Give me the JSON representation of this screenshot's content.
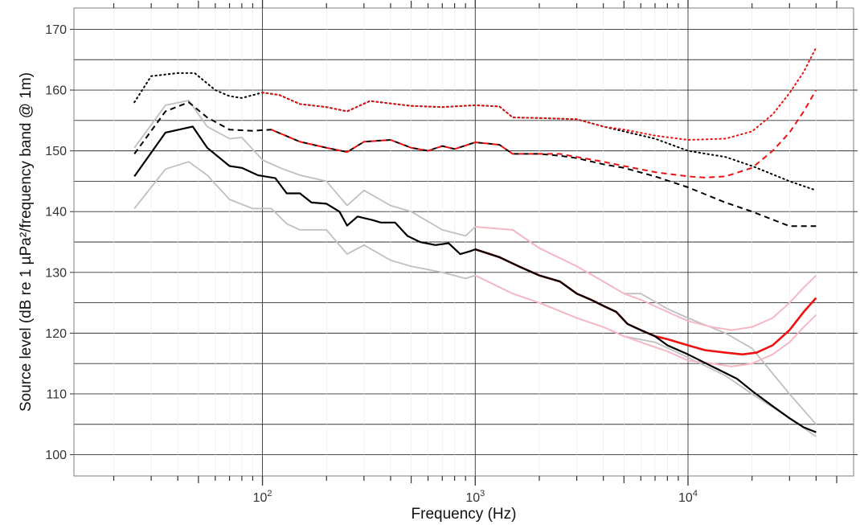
{
  "chart_data": {
    "type": "line",
    "title": "",
    "xlabel": "Frequency (Hz)",
    "ylabel": "Source level (dB re 1 µPa²/frequency band @ 1m)",
    "x_scale": "log",
    "xlim": [
      13,
      60000
    ],
    "ylim": [
      96.5,
      173.5
    ],
    "y_ticks": [
      100,
      110,
      120,
      130,
      140,
      150,
      160,
      170
    ],
    "y_minor_ticks": [
      105,
      115,
      125,
      135,
      145,
      155,
      165
    ],
    "x_ticks": [
      {
        "value": 100,
        "base": "10",
        "exp": "2"
      },
      {
        "value": 1000,
        "base": "10",
        "exp": "3"
      },
      {
        "value": 10000,
        "base": "10",
        "exp": "4"
      }
    ],
    "grid": true,
    "legend": "none",
    "series": [
      {
        "color": "#c0c0c0",
        "style": "solid",
        "width": 1.8,
        "points": [
          [
            25,
            150.5
          ],
          [
            35,
            157.5
          ],
          [
            45,
            158.3
          ],
          [
            55,
            154
          ],
          [
            70,
            152
          ],
          [
            80,
            152.2
          ],
          [
            100,
            148.5
          ],
          [
            125,
            147
          ],
          [
            150,
            146
          ],
          [
            200,
            145
          ],
          [
            250,
            141
          ],
          [
            300,
            143.5
          ],
          [
            400,
            141
          ],
          [
            500,
            140
          ],
          [
            700,
            137
          ],
          [
            900,
            136
          ],
          [
            1000,
            137.5
          ],
          [
            1500,
            137
          ],
          [
            2000,
            134
          ],
          [
            3000,
            131
          ],
          [
            4000,
            128.5
          ],
          [
            5000,
            126.5
          ],
          [
            6000,
            126.5
          ],
          [
            8000,
            124
          ],
          [
            10000,
            122.5
          ],
          [
            15000,
            120
          ],
          [
            20000,
            117.5
          ],
          [
            30000,
            110
          ],
          [
            40000,
            105
          ]
        ]
      },
      {
        "color": "#c0c0c0",
        "style": "solid",
        "width": 1.8,
        "points": [
          [
            25,
            140.5
          ],
          [
            35,
            147
          ],
          [
            45,
            148.2
          ],
          [
            55,
            146
          ],
          [
            70,
            142
          ],
          [
            90,
            140.5
          ],
          [
            110,
            140.5
          ],
          [
            130,
            138
          ],
          [
            150,
            137
          ],
          [
            200,
            137
          ],
          [
            250,
            133
          ],
          [
            300,
            134.5
          ],
          [
            400,
            132
          ],
          [
            500,
            131
          ],
          [
            700,
            130
          ],
          [
            900,
            129
          ],
          [
            1000,
            129.5
          ],
          [
            1500,
            126.5
          ],
          [
            2000,
            125
          ],
          [
            3000,
            122.5
          ],
          [
            4000,
            121
          ],
          [
            5000,
            119.5
          ],
          [
            7000,
            118.5
          ],
          [
            10000,
            116
          ],
          [
            15000,
            113
          ],
          [
            20000,
            110
          ],
          [
            30000,
            106
          ],
          [
            40000,
            103
          ]
        ]
      },
      {
        "color": "#f5b8c4",
        "style": "solid",
        "width": 2.0,
        "points": [
          [
            1000,
            137.5
          ],
          [
            1500,
            137
          ],
          [
            2000,
            134
          ],
          [
            3000,
            131
          ],
          [
            4000,
            128.5
          ],
          [
            5000,
            126.5
          ],
          [
            6000,
            125.5
          ],
          [
            8000,
            123.5
          ],
          [
            10000,
            122
          ],
          [
            13000,
            121
          ],
          [
            16000,
            120.5
          ],
          [
            20000,
            121
          ],
          [
            25000,
            122.5
          ],
          [
            30000,
            125
          ],
          [
            35000,
            127.5
          ],
          [
            40000,
            129.5
          ]
        ]
      },
      {
        "color": "#f5b8c4",
        "style": "solid",
        "width": 2.0,
        "points": [
          [
            1000,
            129.5
          ],
          [
            1500,
            126.5
          ],
          [
            2000,
            125
          ],
          [
            3000,
            122.5
          ],
          [
            4000,
            121
          ],
          [
            5000,
            119.5
          ],
          [
            6000,
            118.5
          ],
          [
            8000,
            117
          ],
          [
            10000,
            115.5
          ],
          [
            13000,
            115
          ],
          [
            16000,
            114.5
          ],
          [
            20000,
            115
          ],
          [
            25000,
            116.5
          ],
          [
            30000,
            118.5
          ],
          [
            35000,
            121
          ],
          [
            40000,
            123
          ]
        ]
      },
      {
        "color": "#ee1111",
        "style": "solid",
        "width": 2.6,
        "points": [
          [
            1000,
            133.8
          ],
          [
            1300,
            132.5
          ],
          [
            1600,
            131
          ],
          [
            2000,
            129.5
          ],
          [
            2500,
            128.5
          ],
          [
            3000,
            126.5
          ],
          [
            3500,
            125.5
          ],
          [
            4000,
            124.5
          ],
          [
            4600,
            123.5
          ],
          [
            5200,
            121.5
          ],
          [
            6000,
            120.5
          ],
          [
            7000,
            119.5
          ],
          [
            8000,
            119
          ],
          [
            10000,
            118
          ],
          [
            12000,
            117.2
          ],
          [
            15000,
            116.8
          ],
          [
            18000,
            116.5
          ],
          [
            21000,
            116.8
          ],
          [
            25000,
            118
          ],
          [
            30000,
            120.5
          ],
          [
            35000,
            123.5
          ],
          [
            40000,
            125.8
          ]
        ]
      },
      {
        "color": "#000000",
        "style": "solid",
        "width": 2.2,
        "points": [
          [
            25,
            145.8
          ],
          [
            35,
            153
          ],
          [
            47,
            154
          ],
          [
            55,
            150.5
          ],
          [
            70,
            147.5
          ],
          [
            80,
            147.2
          ],
          [
            95,
            146
          ],
          [
            115,
            145.5
          ],
          [
            130,
            143
          ],
          [
            150,
            143
          ],
          [
            170,
            141.5
          ],
          [
            200,
            141.3
          ],
          [
            230,
            140
          ],
          [
            250,
            137.7
          ],
          [
            280,
            139.2
          ],
          [
            330,
            138.6
          ],
          [
            360,
            138.2
          ],
          [
            420,
            138.2
          ],
          [
            480,
            136
          ],
          [
            550,
            135
          ],
          [
            650,
            134.5
          ],
          [
            750,
            134.8
          ],
          [
            850,
            133
          ],
          [
            950,
            133.5
          ],
          [
            1000,
            133.8
          ],
          [
            1300,
            132.5
          ],
          [
            1600,
            131
          ],
          [
            2000,
            129.5
          ],
          [
            2500,
            128.5
          ],
          [
            3000,
            126.5
          ],
          [
            3500,
            125.5
          ],
          [
            4000,
            124.5
          ],
          [
            4600,
            123.5
          ],
          [
            5200,
            121.5
          ],
          [
            6000,
            120.5
          ],
          [
            7000,
            119.5
          ],
          [
            8000,
            118
          ],
          [
            10000,
            116.5
          ],
          [
            13000,
            114.5
          ],
          [
            17000,
            112.5
          ],
          [
            20000,
            110.5
          ],
          [
            25000,
            108
          ],
          [
            30000,
            106
          ],
          [
            35000,
            104.5
          ],
          [
            40000,
            103.7
          ]
        ]
      },
      {
        "color": "#000000",
        "style": "dashed",
        "width": 2.0,
        "points": [
          [
            25,
            149.5
          ],
          [
            35,
            156.5
          ],
          [
            45,
            158
          ],
          [
            55,
            155.5
          ],
          [
            70,
            153.5
          ],
          [
            90,
            153.3
          ],
          [
            110,
            153.5
          ],
          [
            150,
            151.5
          ],
          [
            200,
            150.5
          ],
          [
            250,
            149.8
          ],
          [
            300,
            151.5
          ],
          [
            400,
            151.8
          ],
          [
            500,
            150.5
          ],
          [
            600,
            150
          ],
          [
            700,
            150.8
          ],
          [
            800,
            150.3
          ],
          [
            1000,
            151.4
          ],
          [
            1300,
            151
          ],
          [
            1500,
            149.5
          ],
          [
            2000,
            149.5
          ],
          [
            2500,
            149.2
          ],
          [
            3000,
            148.8
          ],
          [
            4000,
            147.8
          ],
          [
            5000,
            147.2
          ],
          [
            7000,
            145.8
          ],
          [
            10000,
            144
          ],
          [
            15000,
            141.5
          ],
          [
            20000,
            140
          ],
          [
            30000,
            137.6
          ],
          [
            40000,
            137.6
          ]
        ]
      },
      {
        "color": "#ee1111",
        "style": "dashed",
        "width": 2.0,
        "points": [
          [
            110,
            153.5
          ],
          [
            150,
            151.5
          ],
          [
            200,
            150.5
          ],
          [
            250,
            149.8
          ],
          [
            300,
            151.5
          ],
          [
            400,
            151.8
          ],
          [
            500,
            150.5
          ],
          [
            600,
            150
          ],
          [
            700,
            150.8
          ],
          [
            800,
            150.3
          ],
          [
            1000,
            151.4
          ],
          [
            1300,
            151
          ],
          [
            1500,
            149.5
          ],
          [
            2000,
            149.5
          ],
          [
            2500,
            149.5
          ],
          [
            3000,
            149
          ],
          [
            4000,
            148.2
          ],
          [
            5000,
            147.5
          ],
          [
            7000,
            146.5
          ],
          [
            10000,
            145.8
          ],
          [
            12000,
            145.6
          ],
          [
            15000,
            145.8
          ],
          [
            20000,
            147.2
          ],
          [
            25000,
            150
          ],
          [
            30000,
            153
          ],
          [
            35000,
            156.5
          ],
          [
            40000,
            160
          ]
        ]
      },
      {
        "color": "#000000",
        "style": "dotted",
        "width": 2.0,
        "points": [
          [
            25,
            158
          ],
          [
            30,
            162.3
          ],
          [
            40,
            162.8
          ],
          [
            48,
            162.8
          ],
          [
            60,
            160
          ],
          [
            70,
            159
          ],
          [
            80,
            158.7
          ],
          [
            100,
            159.6
          ],
          [
            120,
            159.2
          ],
          [
            150,
            157.7
          ],
          [
            200,
            157.2
          ],
          [
            250,
            156.5
          ],
          [
            320,
            158.2
          ],
          [
            400,
            157.8
          ],
          [
            500,
            157.4
          ],
          [
            700,
            157.2
          ],
          [
            1000,
            157.5
          ],
          [
            1300,
            157.3
          ],
          [
            1500,
            155.5
          ],
          [
            2000,
            155.4
          ],
          [
            3000,
            155.2
          ],
          [
            4000,
            154
          ],
          [
            5000,
            153.2
          ],
          [
            7000,
            152
          ],
          [
            10000,
            150
          ],
          [
            15000,
            149
          ],
          [
            20000,
            147.5
          ],
          [
            30000,
            145
          ],
          [
            40000,
            143.5
          ]
        ]
      },
      {
        "color": "#ee1111",
        "style": "dotted",
        "width": 2.0,
        "points": [
          [
            100,
            159.6
          ],
          [
            120,
            159.2
          ],
          [
            150,
            157.7
          ],
          [
            200,
            157.2
          ],
          [
            250,
            156.5
          ],
          [
            320,
            158.2
          ],
          [
            400,
            157.8
          ],
          [
            500,
            157.4
          ],
          [
            700,
            157.2
          ],
          [
            1000,
            157.5
          ],
          [
            1300,
            157.3
          ],
          [
            1500,
            155.5
          ],
          [
            2000,
            155.4
          ],
          [
            3000,
            155.2
          ],
          [
            4000,
            154
          ],
          [
            5000,
            153.5
          ],
          [
            7000,
            152.5
          ],
          [
            10000,
            151.8
          ],
          [
            15000,
            152
          ],
          [
            20000,
            153.2
          ],
          [
            25000,
            156
          ],
          [
            30000,
            159.5
          ],
          [
            35000,
            163
          ],
          [
            40000,
            167
          ]
        ]
      }
    ]
  }
}
